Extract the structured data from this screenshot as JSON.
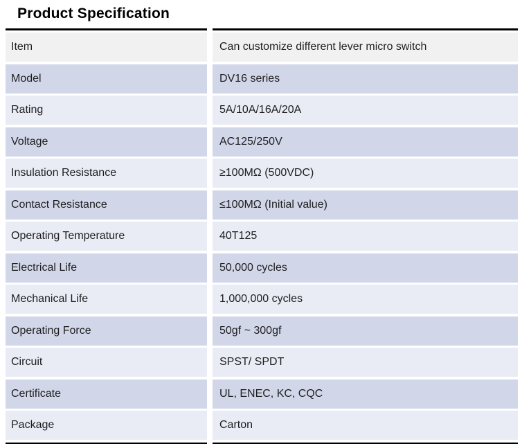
{
  "page": {
    "title": "Product Specification"
  },
  "colors": {
    "rule": "#000000",
    "row_first_gray": "#f1f1f2",
    "row_lavender": "#d1d6e9",
    "row_pale": "#e9ebf5",
    "text": "#1f1f1f"
  },
  "table": {
    "rows": [
      {
        "label": "Item",
        "value": "Can customize different lever micro switch"
      },
      {
        "label": "Model",
        "value": "DV16 series"
      },
      {
        "label": "Rating",
        "value": "5A/10A/16A/20A"
      },
      {
        "label": "Voltage",
        "value": "AC125/250V"
      },
      {
        "label": "Insulation Resistance",
        "value": "≥100MΩ (500VDC)"
      },
      {
        "label": "Contact Resistance",
        "value": "≤100MΩ (Initial value)"
      },
      {
        "label": "Operating Temperature",
        "value": "40T125"
      },
      {
        "label": "Electrical Life",
        "value": "50,000 cycles"
      },
      {
        "label": "Mechanical Life",
        "value": "1,000,000 cycles"
      },
      {
        "label": "Operating Force",
        "value": "50gf ~ 300gf"
      },
      {
        "label": "Circuit",
        "value": "SPST/ SPDT"
      },
      {
        "label": "Certificate",
        "value": "UL, ENEC, KC, CQC"
      },
      {
        "label": "Package",
        "value": "Carton"
      }
    ]
  }
}
